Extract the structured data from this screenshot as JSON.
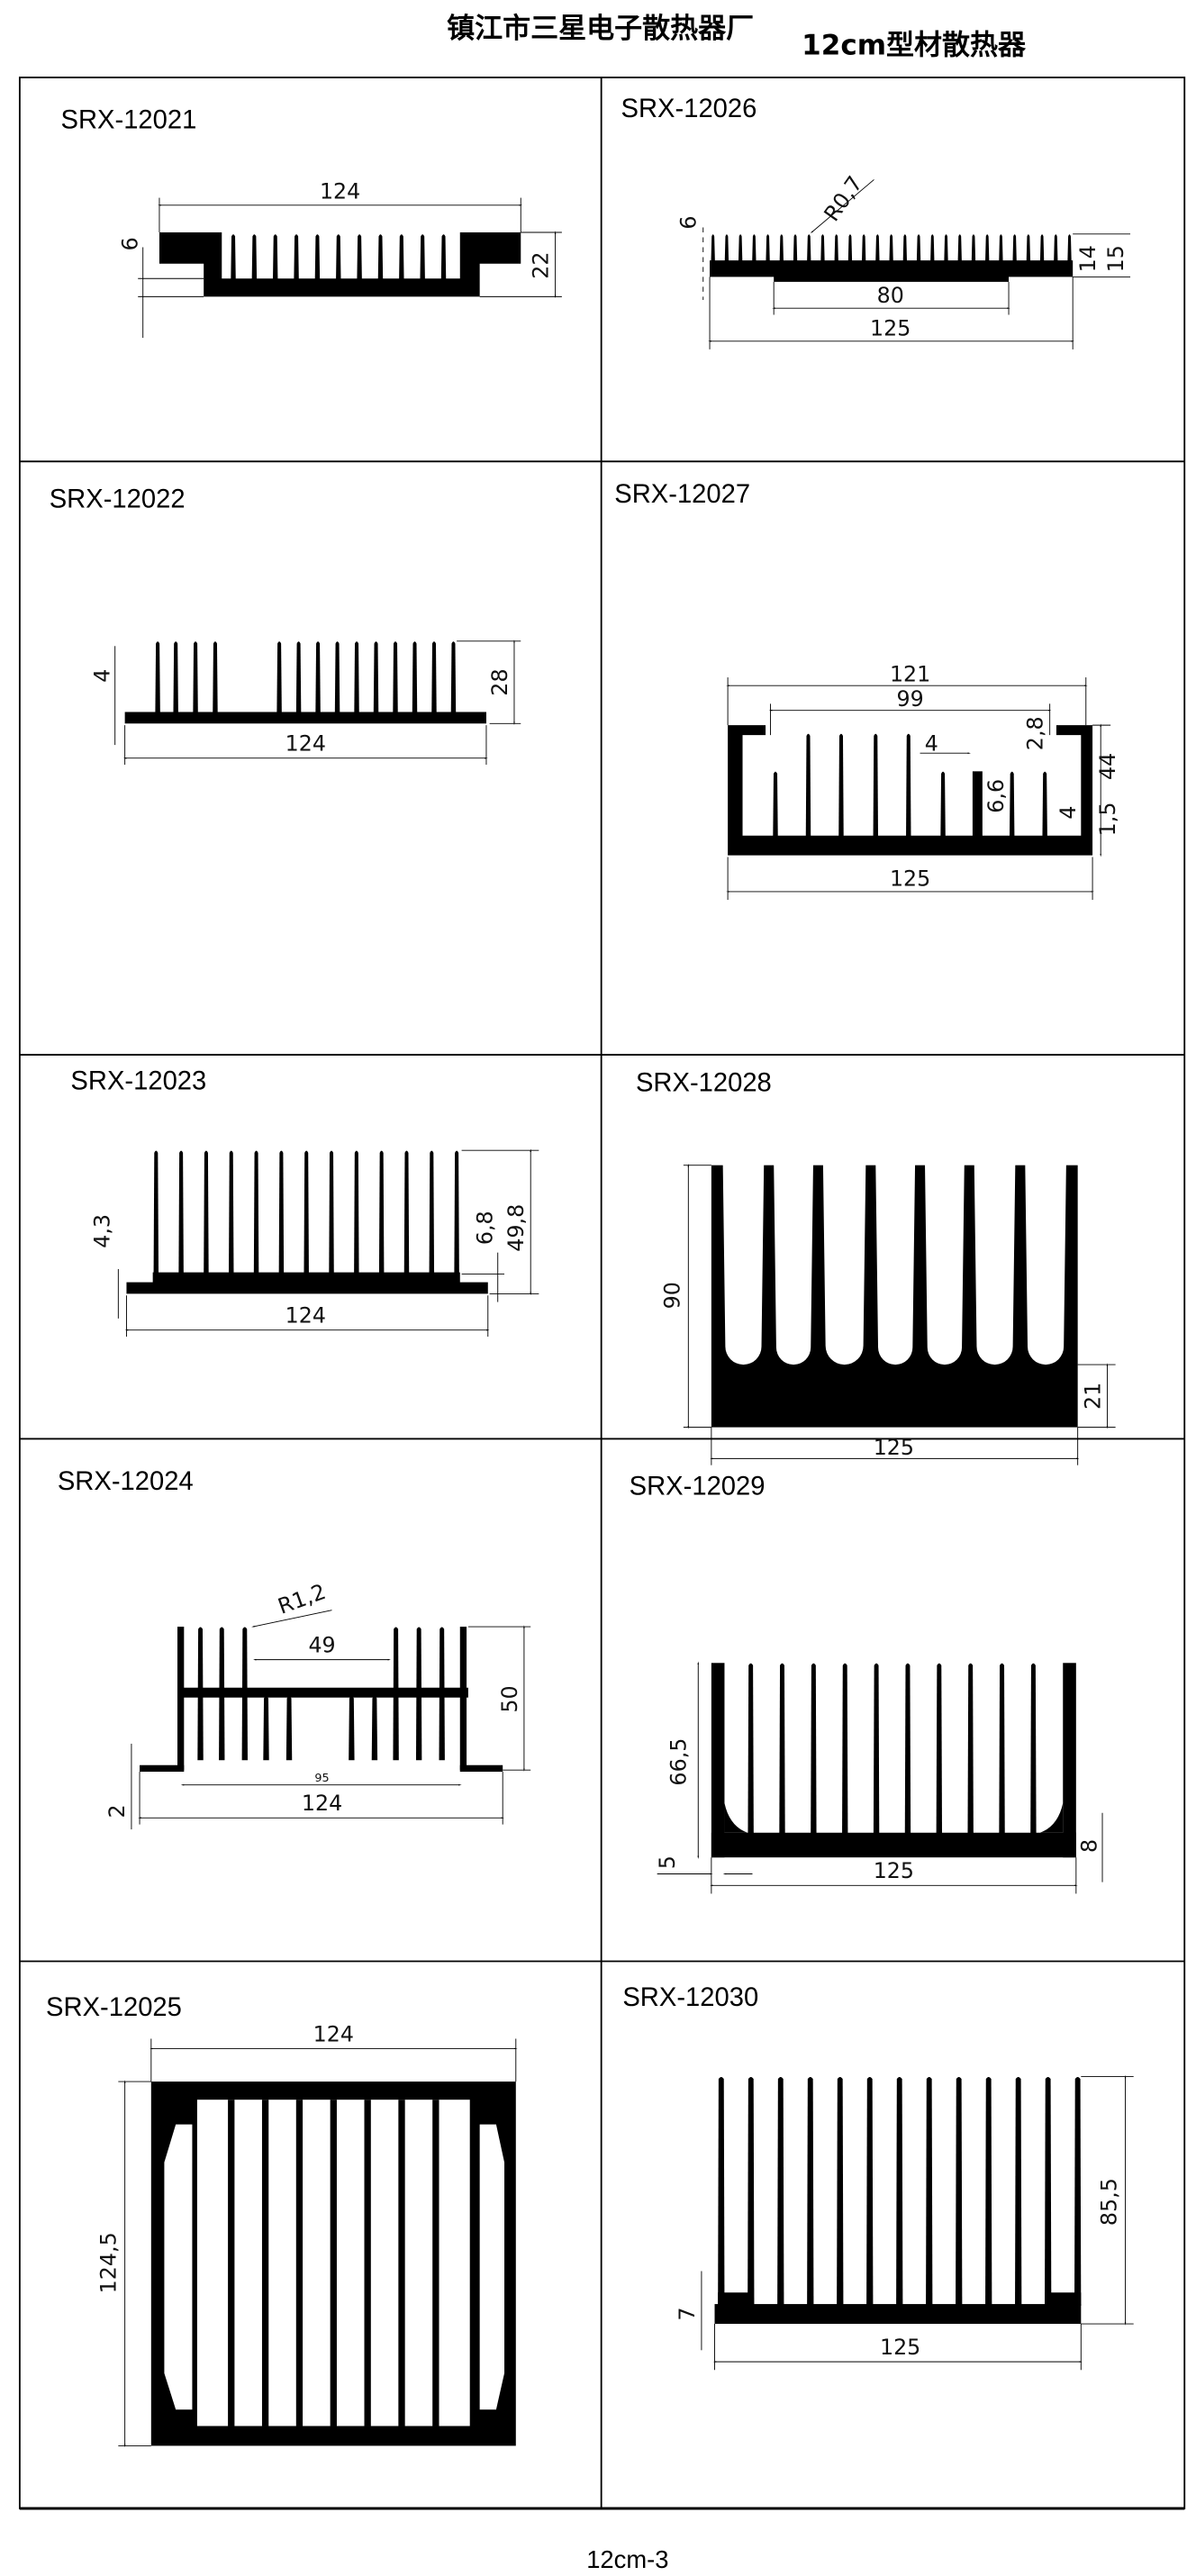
{
  "header": {
    "company": "镇江市三星电子散热器厂",
    "subtitle": "12cm型材散热器"
  },
  "footer": {
    "page_code": "12cm-3"
  },
  "products": [
    {
      "model": "SRX-12021",
      "dims": [
        "124",
        "6",
        "22"
      ]
    },
    {
      "model": "SRX-12026",
      "dims": [
        "R0,7",
        "6",
        "80",
        "125",
        "14",
        "15"
      ]
    },
    {
      "model": "SRX-12022",
      "dims": [
        "4",
        "28",
        "124"
      ]
    },
    {
      "model": "SRX-12027",
      "dims": [
        "121",
        "99",
        "2,8",
        "44",
        "4",
        "6,6",
        "1,5",
        "4",
        "125"
      ]
    },
    {
      "model": "SRX-12023",
      "dims": [
        "4,3",
        "6,8",
        "49,8",
        "124"
      ]
    },
    {
      "model": "SRX-12028",
      "dims": [
        "90",
        "21",
        "125"
      ]
    },
    {
      "model": "SRX-12024",
      "dims": [
        "R1,2",
        "49",
        "50",
        "95",
        "124",
        "2"
      ]
    },
    {
      "model": "SRX-12029",
      "dims": [
        "66,5",
        "5",
        "125",
        "8"
      ]
    },
    {
      "model": "SRX-12025",
      "dims": [
        "124",
        "124,5"
      ]
    },
    {
      "model": "SRX-12030",
      "dims": [
        "85,5",
        "7",
        "125"
      ]
    }
  ],
  "colors": {
    "ink": "#000000",
    "paper": "#ffffff"
  }
}
